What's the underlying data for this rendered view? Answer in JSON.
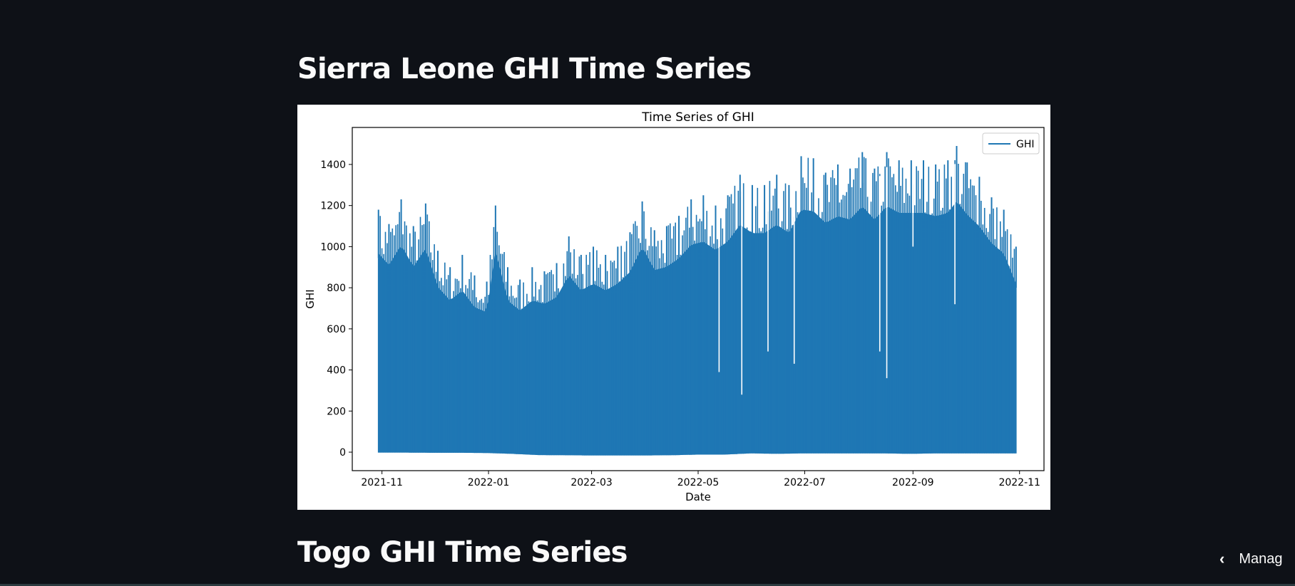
{
  "headings": {
    "first": "Sierra Leone GHI Time Series",
    "second": "Togo GHI Time Series"
  },
  "manage": {
    "label": "Manag",
    "icon": "chevron-left-icon"
  },
  "colors": {
    "background": "#0e1117",
    "series": "#1f77b4",
    "heading": "#fafafa"
  },
  "chart_data": {
    "type": "area",
    "title": "Time Series of GHI",
    "xlabel": "Date",
    "ylabel": "GHI",
    "xlim": [
      "2021-10-15",
      "2022-11-15"
    ],
    "ylim": [
      -90,
      1580
    ],
    "x_ticks": [
      "2021-11",
      "2022-01",
      "2022-03",
      "2022-05",
      "2022-07",
      "2022-09",
      "2022-11"
    ],
    "y_ticks": [
      0,
      200,
      400,
      600,
      800,
      1000,
      1200,
      1400
    ],
    "legend": {
      "position": "top-right",
      "entries": [
        "GHI"
      ]
    },
    "grid": false,
    "series": [
      {
        "name": "GHI",
        "x_start": "2021-10-30",
        "x_end": "2022-10-30",
        "min_values": [
          -2,
          -2,
          -3,
          -3,
          -4,
          -8,
          -14,
          -15,
          -16,
          -16,
          -16,
          -15,
          -12,
          -12,
          -6,
          -8,
          -6,
          -6,
          -6,
          -6,
          -8,
          -6,
          -6,
          -6,
          -6
        ],
        "max_envelope": [
          [
            "2021-10-30",
            1180
          ],
          [
            "2021-11-05",
            1110
          ],
          [
            "2021-11-12",
            1230
          ],
          [
            "2021-11-19",
            1100
          ],
          [
            "2021-11-26",
            1210
          ],
          [
            "2021-12-03",
            980
          ],
          [
            "2021-12-10",
            900
          ],
          [
            "2021-12-17",
            960
          ],
          [
            "2021-12-24",
            860
          ],
          [
            "2021-12-31",
            830
          ],
          [
            "2022-01-05",
            1200
          ],
          [
            "2022-01-12",
            900
          ],
          [
            "2022-01-19",
            840
          ],
          [
            "2022-01-26",
            900
          ],
          [
            "2022-02-02",
            880
          ],
          [
            "2022-02-09",
            920
          ],
          [
            "2022-02-16",
            1050
          ],
          [
            "2022-02-23",
            960
          ],
          [
            "2022-03-02",
            1000
          ],
          [
            "2022-03-09",
            960
          ],
          [
            "2022-03-16",
            1000
          ],
          [
            "2022-03-23",
            1070
          ],
          [
            "2022-03-30",
            1220
          ],
          [
            "2022-04-06",
            1080
          ],
          [
            "2022-04-13",
            1100
          ],
          [
            "2022-04-20",
            1150
          ],
          [
            "2022-04-27",
            1230
          ],
          [
            "2022-05-04",
            1250
          ],
          [
            "2022-05-11",
            1200
          ],
          [
            "2022-05-18",
            1250
          ],
          [
            "2022-05-25",
            1350
          ],
          [
            "2022-06-01",
            1300
          ],
          [
            "2022-06-08",
            1300
          ],
          [
            "2022-06-15",
            1350
          ],
          [
            "2022-06-22",
            1300
          ],
          [
            "2022-06-29",
            1440
          ],
          [
            "2022-07-06",
            1430
          ],
          [
            "2022-07-13",
            1360
          ],
          [
            "2022-07-20",
            1400
          ],
          [
            "2022-07-27",
            1380
          ],
          [
            "2022-08-03",
            1460
          ],
          [
            "2022-08-10",
            1380
          ],
          [
            "2022-08-17",
            1460
          ],
          [
            "2022-08-24",
            1420
          ],
          [
            "2022-08-31",
            1420
          ],
          [
            "2022-09-07",
            1420
          ],
          [
            "2022-09-14",
            1400
          ],
          [
            "2022-09-21",
            1420
          ],
          [
            "2022-09-26",
            1490
          ],
          [
            "2022-10-02",
            1410
          ],
          [
            "2022-10-09",
            1340
          ],
          [
            "2022-10-16",
            1240
          ],
          [
            "2022-10-23",
            1180
          ],
          [
            "2022-10-30",
            1000
          ]
        ],
        "dips": [
          [
            "2022-05-13",
            390
          ],
          [
            "2022-05-26",
            280
          ],
          [
            "2022-06-10",
            490
          ],
          [
            "2022-06-25",
            430
          ],
          [
            "2022-08-13",
            490
          ],
          [
            "2022-08-17",
            360
          ],
          [
            "2022-09-01",
            1000
          ],
          [
            "2022-09-25",
            720
          ]
        ]
      }
    ]
  }
}
